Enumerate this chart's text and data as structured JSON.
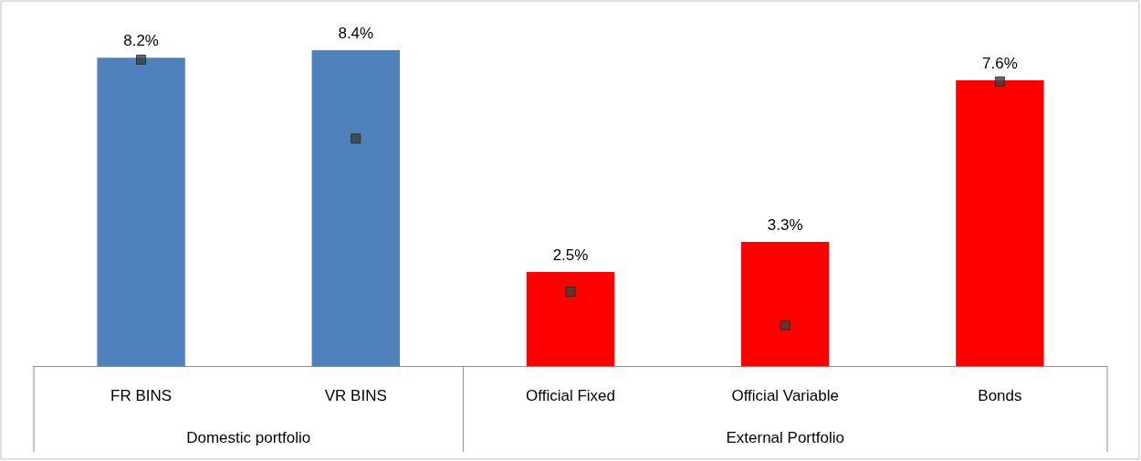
{
  "chart_data": {
    "type": "bar",
    "categories": [
      "FR BINS",
      "VR BINS",
      "Official Fixed",
      "Official Variable",
      "Bonds"
    ],
    "annotations": [
      "Domestic portfolio",
      "External Portfolio"
    ],
    "series": [
      {
        "values": [
          8.2,
          8.4,
          2.5,
          3.3,
          7.6
        ],
        "colors": [
          "#4f81bd",
          "#4f81bd",
          "#ff0000",
          "#ff0000",
          "#ff0000"
        ],
        "value_labels": [
          "8.2%",
          "8.4%",
          "2.5%",
          "3.3%",
          "7.6%"
        ]
      },
      {
        "type": "scatter",
        "x": [
          "FR BINS",
          "VR BINS",
          "Official Fixed",
          "Official Variable",
          "Bonds"
        ],
        "values": [
          8.15,
          6.05,
          1.98,
          1.09,
          7.57
        ],
        "color": "#404040",
        "marker": "square"
      }
    ]
  }
}
